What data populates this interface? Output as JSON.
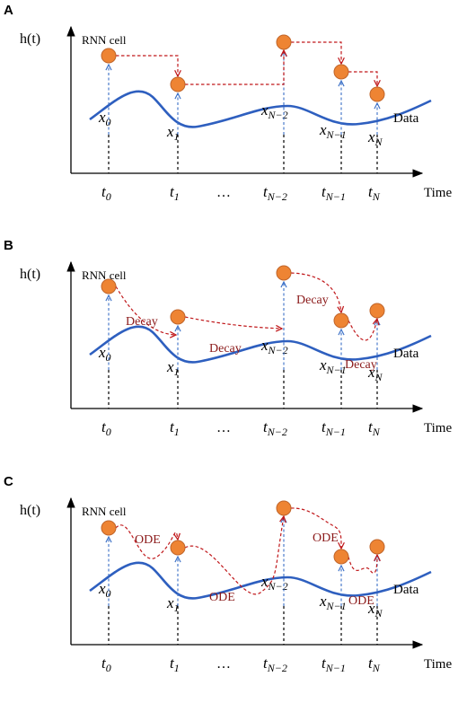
{
  "panels": [
    {
      "letter": "A",
      "op": "",
      "op_labels": []
    },
    {
      "letter": "B",
      "op": "Decay",
      "op_labels": [
        "Decay",
        "Decay",
        "Decay",
        "Decay"
      ]
    },
    {
      "letter": "C",
      "op": "ODE",
      "op_labels": [
        "ODE",
        "ODE",
        "ODE",
        "ODE"
      ]
    }
  ],
  "y_axis_label": "h(t)",
  "x_axis_label": "Time",
  "curve_label": "Data",
  "cell_label": "RNN cell",
  "ellipsis": "…",
  "time_ticks": [
    {
      "base": "t",
      "sub": "0"
    },
    {
      "base": "t",
      "sub": "1"
    },
    {
      "base": "t",
      "sub": "N−2"
    },
    {
      "base": "t",
      "sub": "N−1"
    },
    {
      "base": "t",
      "sub": "N"
    }
  ],
  "x_labels": [
    {
      "base": "x",
      "sub": "0"
    },
    {
      "base": "x",
      "sub": "1"
    },
    {
      "base": "x",
      "sub": "N−2"
    },
    {
      "base": "x",
      "sub": "N−1"
    },
    {
      "base": "x",
      "sub": "N"
    }
  ],
  "colors": {
    "data_curve": "#2e5fbf",
    "node_fill": "#ee8433",
    "arrow_red": "#c0181b",
    "op_text": "#8b1a1a"
  }
}
